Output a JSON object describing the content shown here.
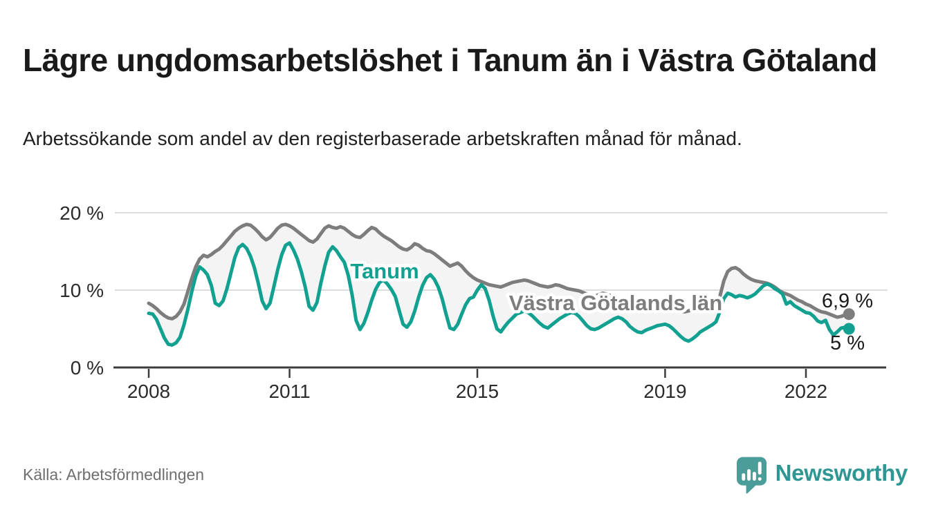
{
  "header": {
    "title": "Lägre ungdomsarbetslöshet i Tanum än i Västra Götaland",
    "subtitle": "Arbetssökande som andel av den registerbaserade arbetskraften månad för månad."
  },
  "footer": {
    "source": "Källa: Arbetsförmedlingen",
    "brand": "Newsworthy"
  },
  "colors": {
    "tanum_teal": "#12a191",
    "vgl_gray": "#7d7d7d",
    "band_fill": "#f4f4f4",
    "grid": "#dcdcdc",
    "axis": "#3c3c3c",
    "tick_text": "#2b2b2b",
    "end_label_text": "#1a1a1a",
    "logo_teal": "#4a9d98",
    "brand_teal": "#2f9793"
  },
  "chart_data": {
    "type": "line",
    "x_unit": "month",
    "x_range": [
      "2008-01",
      "2022-12"
    ],
    "x_tick_years": [
      2008,
      2011,
      2015,
      2019,
      2022
    ],
    "y_ticks": [
      {
        "value": 0,
        "label": "0 %"
      },
      {
        "value": 10,
        "label": "10 %"
      },
      {
        "value": 20,
        "label": "20 %"
      }
    ],
    "ylim": [
      0,
      20
    ],
    "grid_values": [
      10,
      20
    ],
    "legend_position": "inline-labels",
    "series": [
      {
        "name": "Västra Götalands län",
        "color": "#7d7d7d",
        "end_label": "6,9 %",
        "end_value": 6.9,
        "values": [
          8.3,
          8.0,
          7.6,
          7.1,
          6.7,
          6.4,
          6.3,
          6.6,
          7.2,
          8.2,
          9.8,
          11.5,
          13.0,
          14.0,
          14.5,
          14.3,
          14.6,
          15.0,
          15.3,
          15.8,
          16.4,
          17.0,
          17.6,
          18.0,
          18.3,
          18.5,
          18.4,
          18.0,
          17.5,
          16.9,
          16.5,
          16.8,
          17.4,
          18.0,
          18.4,
          18.5,
          18.3,
          18.0,
          17.6,
          17.2,
          16.8,
          16.4,
          16.2,
          16.6,
          17.3,
          18.0,
          18.3,
          18.1,
          18.0,
          18.2,
          18.0,
          17.6,
          17.2,
          16.9,
          16.8,
          17.2,
          17.7,
          18.1,
          17.9,
          17.4,
          17.0,
          16.7,
          16.4,
          16.0,
          15.6,
          15.3,
          15.2,
          15.5,
          16.0,
          15.8,
          15.4,
          15.1,
          15.0,
          14.7,
          14.3,
          13.9,
          13.5,
          13.1,
          13.3,
          13.5,
          13.1,
          12.5,
          12.0,
          11.6,
          11.3,
          11.1,
          10.9,
          10.7,
          10.6,
          10.5,
          10.4,
          10.6,
          10.8,
          11.0,
          11.1,
          11.2,
          11.3,
          11.2,
          11.0,
          10.8,
          10.6,
          10.5,
          10.4,
          10.5,
          10.7,
          10.6,
          10.4,
          10.2,
          10.1,
          10.0,
          9.9,
          9.7,
          9.5,
          9.3,
          9.2,
          9.4,
          9.6,
          9.5,
          9.3,
          9.1,
          8.9,
          8.7,
          8.5,
          8.3,
          8.1,
          7.9,
          7.8,
          8.0,
          8.2,
          8.1,
          7.9,
          7.8,
          7.9,
          7.8,
          7.6,
          7.4,
          7.3,
          7.2,
          7.3,
          7.5,
          7.7,
          7.6,
          7.4,
          7.5,
          7.7,
          8.0,
          9.2,
          11.2,
          12.4,
          12.8,
          12.9,
          12.6,
          12.1,
          11.7,
          11.4,
          11.2,
          11.1,
          11.0,
          10.9,
          10.7,
          10.4,
          10.0,
          9.7,
          9.5,
          9.3,
          9.0,
          8.7,
          8.5,
          8.2,
          8.0,
          7.7,
          7.4,
          7.2,
          7.1,
          6.9,
          6.7,
          6.5,
          6.6,
          6.8,
          6.9
        ]
      },
      {
        "name": "Tanum",
        "color": "#12a191",
        "end_label": "5 %",
        "end_value": 5.0,
        "values": [
          7.0,
          6.9,
          6.2,
          5.0,
          3.8,
          3.0,
          2.9,
          3.2,
          3.9,
          5.5,
          7.5,
          9.8,
          11.8,
          13.0,
          12.6,
          12.0,
          10.6,
          8.3,
          8.0,
          8.6,
          10.2,
          12.2,
          14.2,
          15.5,
          15.9,
          15.4,
          14.4,
          12.9,
          10.9,
          8.6,
          7.6,
          8.3,
          10.5,
          12.7,
          14.6,
          15.8,
          16.1,
          15.2,
          14.0,
          12.4,
          10.4,
          7.9,
          7.4,
          8.4,
          10.9,
          13.1,
          14.9,
          15.6,
          15.1,
          14.3,
          13.6,
          11.9,
          9.4,
          6.1,
          4.9,
          5.7,
          7.1,
          8.7,
          10.1,
          11.0,
          11.3,
          10.8,
          10.1,
          9.2,
          7.4,
          5.6,
          5.2,
          5.9,
          7.3,
          9.1,
          10.6,
          11.6,
          12.0,
          11.4,
          10.4,
          8.9,
          6.9,
          5.1,
          4.9,
          5.6,
          6.9,
          8.1,
          8.9,
          9.1,
          10.0,
          10.7,
          10.2,
          8.7,
          6.7,
          5.0,
          4.6,
          5.3,
          5.9,
          6.4,
          6.9,
          7.1,
          7.3,
          7.1,
          6.7,
          6.2,
          5.7,
          5.3,
          5.1,
          5.5,
          5.9,
          6.3,
          6.6,
          6.9,
          7.1,
          7.0,
          6.6,
          6.0,
          5.4,
          5.0,
          4.9,
          5.1,
          5.4,
          5.7,
          6.0,
          6.3,
          6.5,
          6.3,
          5.9,
          5.3,
          4.9,
          4.6,
          4.5,
          4.8,
          5.0,
          5.2,
          5.4,
          5.5,
          5.6,
          5.4,
          5.0,
          4.5,
          4.0,
          3.6,
          3.4,
          3.7,
          4.1,
          4.6,
          4.9,
          5.2,
          5.5,
          5.9,
          7.2,
          8.9,
          9.6,
          9.4,
          9.1,
          9.3,
          9.2,
          9.0,
          9.2,
          9.5,
          10.0,
          10.5,
          10.8,
          10.6,
          10.2,
          9.9,
          9.5,
          8.2,
          8.5,
          8.0,
          7.7,
          7.4,
          7.1,
          7.0,
          6.6,
          6.0,
          5.8,
          6.1,
          4.9,
          4.2,
          4.6,
          5.1,
          5.2,
          5.0
        ]
      }
    ]
  }
}
